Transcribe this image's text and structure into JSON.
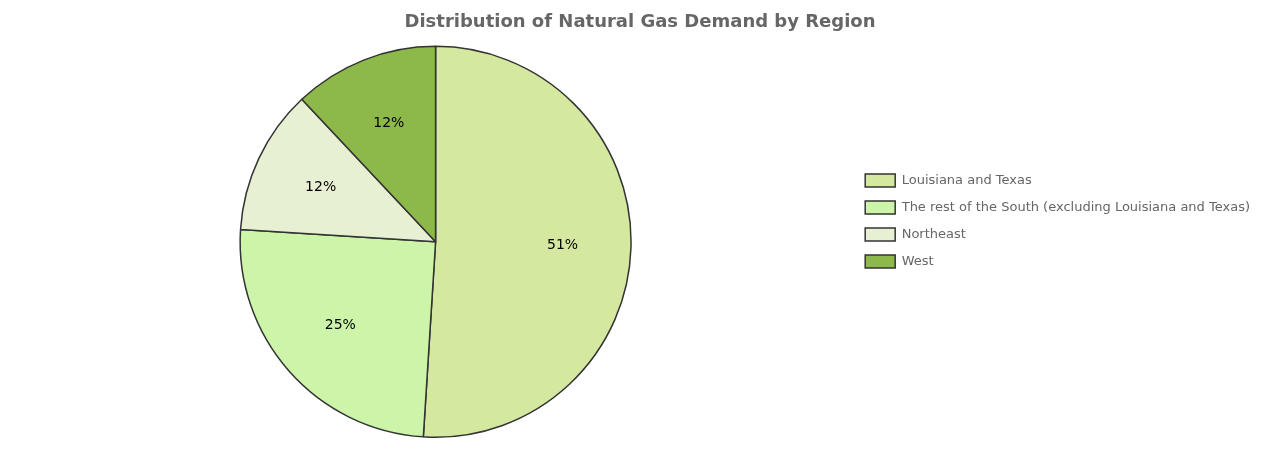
{
  "chart_data": {
    "type": "pie",
    "title": "Distribution of Natural Gas Demand by Region",
    "categories": [
      "Louisiana and Texas",
      "The rest of the South (excluding Louisiana and Texas)",
      "Northeast",
      "West"
    ],
    "values": [
      51,
      25,
      12,
      12
    ],
    "value_labels": [
      "51%",
      "25%",
      "12%",
      "12%"
    ],
    "colors": [
      "#d4e8a0",
      "#ccf5aa",
      "#e8f0d4",
      "#8db84a"
    ],
    "legend": "right",
    "data_labels": true
  }
}
